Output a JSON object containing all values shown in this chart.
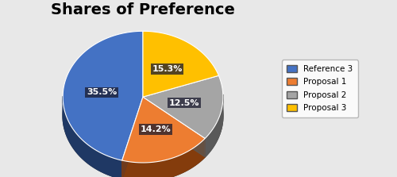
{
  "title": "Shares of Preference",
  "labels": [
    "Reference 3",
    "Proposal 1",
    "Proposal 2",
    "Proposal 3"
  ],
  "values": [
    35.5,
    14.2,
    12.5,
    15.3
  ],
  "colors": [
    "#4472C4",
    "#ED7D31",
    "#A5A5A5",
    "#FFC000"
  ],
  "dark_colors": [
    "#1F3864",
    "#843C0C",
    "#595959",
    "#7F6000"
  ],
  "startangle": 90,
  "title_fontsize": 14,
  "label_fontsize": 8,
  "background_color": "#e8e8e8"
}
